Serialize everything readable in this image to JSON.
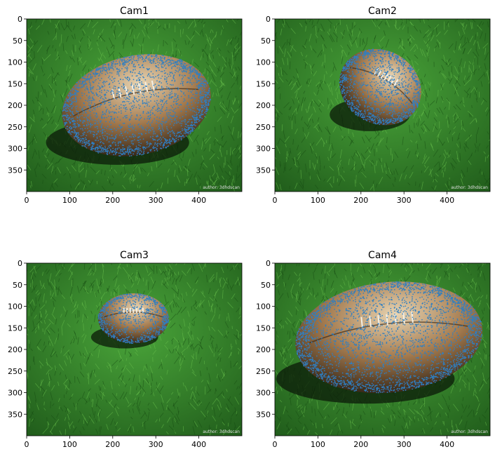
{
  "figure": {
    "panels": [
      {
        "title": "Cam1",
        "watermark": "author: 3dhdscan"
      },
      {
        "title": "Cam2",
        "watermark": "author: 3dhdscan"
      },
      {
        "title": "Cam3",
        "watermark": "author: 3dhdscan"
      },
      {
        "title": "Cam4",
        "watermark": "author: 3dhdscan"
      }
    ]
  },
  "colors": {
    "grass_light": "#4aa53a",
    "grass_dark": "#1f5a1a",
    "ball_leather": "#a37a4e",
    "ball_highlight": "#e8d4b2",
    "lace": "#f2efe6",
    "points": "#2f7fc2",
    "axis": "#000000"
  },
  "chart_data": [
    {
      "type": "scatter",
      "title": "Cam1",
      "xlim": [
        0,
        500
      ],
      "ylim": [
        400,
        0
      ],
      "xticks": [
        0,
        100,
        200,
        300,
        400
      ],
      "yticks": [
        0,
        50,
        100,
        150,
        200,
        250,
        300,
        350
      ],
      "background": "image of american football on grass with projected point overlay",
      "ball": {
        "cx": 255,
        "cy": 200,
        "rx": 175,
        "ry": 115,
        "tilt_deg": -12
      },
      "points_region": {
        "x_range": [
          70,
          420
        ],
        "y_range": [
          85,
          315
        ]
      },
      "point_count": 2600
    },
    {
      "type": "scatter",
      "title": "Cam2",
      "xlim": [
        0,
        500
      ],
      "ylim": [
        400,
        0
      ],
      "xticks": [
        0,
        100,
        200,
        300,
        400
      ],
      "yticks": [
        0,
        50,
        100,
        150,
        200,
        250,
        300,
        350
      ],
      "background": "image of american football on grass with projected point overlay",
      "ball": {
        "cx": 245,
        "cy": 158,
        "rx": 98,
        "ry": 85,
        "tilt_deg": 30
      },
      "points_region": {
        "x_range": [
          145,
          345
        ],
        "y_range": [
          75,
          240
        ]
      },
      "point_count": 1400
    },
    {
      "type": "scatter",
      "title": "Cam3",
      "xlim": [
        0,
        500
      ],
      "ylim": [
        400,
        0
      ],
      "xticks": [
        0,
        100,
        200,
        300,
        400
      ],
      "yticks": [
        0,
        50,
        100,
        150,
        200,
        250,
        300,
        350
      ],
      "background": "image of american football on grass with projected point overlay",
      "ball": {
        "cx": 248,
        "cy": 128,
        "rx": 82,
        "ry": 58,
        "tilt_deg": 0
      },
      "points_region": {
        "x_range": [
          165,
          335
        ],
        "y_range": [
          105,
          185
        ]
      },
      "point_count": 900
    },
    {
      "type": "scatter",
      "title": "Cam4",
      "xlim": [
        0,
        500
      ],
      "ylim": [
        400,
        0
      ],
      "xticks": [
        0,
        100,
        200,
        300,
        400
      ],
      "yticks": [
        0,
        50,
        100,
        150,
        200,
        250,
        300,
        350
      ],
      "background": "image of american football on grass with projected point overlay",
      "ball": {
        "cx": 265,
        "cy": 172,
        "rx": 218,
        "ry": 128,
        "tilt_deg": -6
      },
      "points_region": {
        "x_range": [
          60,
          480
        ],
        "y_range": [
          45,
          300
        ]
      },
      "point_count": 3200
    }
  ]
}
